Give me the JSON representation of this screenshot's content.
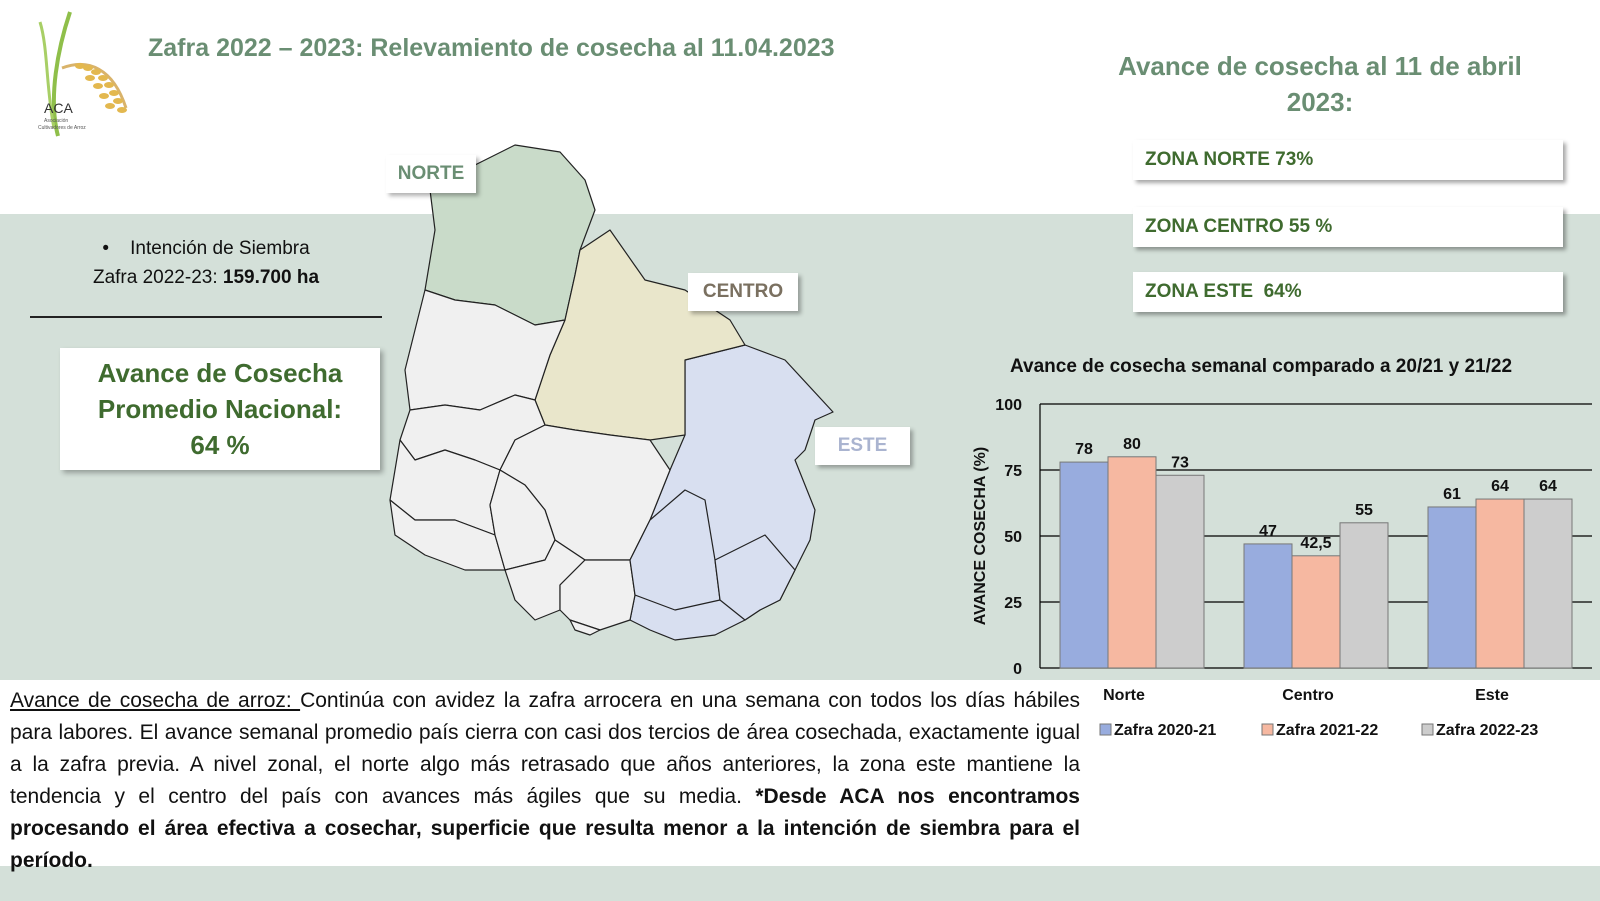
{
  "header": {
    "title": "Zafra 2022 – 2023: Relevamiento de cosecha al 11.04.2023",
    "logo_text": "ACA",
    "logo_subtext_1": "Asociación",
    "logo_subtext_2": "Cultivadores de Arroz"
  },
  "avance": {
    "title_line1": "Avance de cosecha al 11 de abril",
    "title_line2": "2023:",
    "zones": [
      {
        "label": "ZONA NORTE 73%"
      },
      {
        "label": "ZONA CENTRO 55 %"
      },
      {
        "label": "ZONA ESTE  64%"
      }
    ]
  },
  "map": {
    "labels": {
      "norte": "NORTE",
      "centro": "CENTRO",
      "este": "ESTE"
    },
    "colors": {
      "norte": "#c9dbc9",
      "centro": "#e9e6cb",
      "este": "#d8dff0",
      "other": "#f0f0f0",
      "band": "#d4e0d9"
    }
  },
  "intencion": {
    "line1": "Intención de Siembra",
    "line2_prefix": "Zafra 2022-23: ",
    "line2_value": "159.700 ha"
  },
  "nacional": {
    "line1": "Avance de Cosecha",
    "line2": "Promedio Nacional:",
    "line3": "64 %"
  },
  "body": {
    "underlined": "Avance de cosecha de arroz: ",
    "text": "Continúa con avidez la zafra arrocera en una semana con todos los días hábiles para labores. El avance semanal promedio país cierra con casi dos tercios de área cosechada, exactamente igual a la zafra previa. A nivel zonal, el norte algo más retrasado que años anteriores, la zona este mantiene la tendencia y el centro del país con avances más ágiles que su media. ",
    "bold": "*Desde ACA nos encontramos procesando el área efectiva a cosechar, superficie que resulta menor a la intención de siembra para el período."
  },
  "chart_data": {
    "type": "bar",
    "title": "Avance de cosecha semanal comparado a  20/21 y 21/22",
    "ylabel": "AVANCE COSECHA (%)",
    "xlabel": "",
    "categories": [
      "Norte",
      "Centro",
      "Este"
    ],
    "series": [
      {
        "name": "Zafra 2020-21",
        "values": [
          78,
          47,
          61
        ],
        "labels": [
          "78",
          "47",
          "61"
        ],
        "color": "#98acde"
      },
      {
        "name": "Zafra 2021-22",
        "values": [
          80,
          42.5,
          64
        ],
        "labels": [
          "80",
          "42,5",
          "64"
        ],
        "color": "#f6b8a1"
      },
      {
        "name": "Zafra 2022-23",
        "values": [
          73,
          55,
          64
        ],
        "labels": [
          "73",
          "55",
          "64"
        ],
        "color": "#cdcdcd"
      }
    ],
    "ylim": [
      0,
      100
    ],
    "yticks": [
      "0",
      "25",
      "50",
      "75",
      "100"
    ],
    "grid": true,
    "legend": "bottom"
  }
}
